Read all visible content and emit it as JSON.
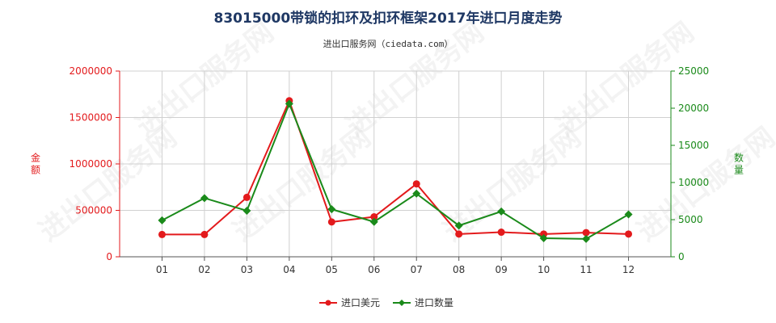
{
  "chart_data": {
    "type": "line",
    "title": "83015000带锁的扣环及扣环框架2017年进口月度走势",
    "subtitle": "进出口服务网（ciedata.com）",
    "watermark": "进出口服务网",
    "categories": [
      "01",
      "02",
      "03",
      "04",
      "05",
      "06",
      "07",
      "08",
      "09",
      "10",
      "11",
      "12"
    ],
    "left_axis": {
      "label": "金额",
      "ylim": [
        0,
        2000000
      ],
      "ticks": [
        "0",
        "500000",
        "1000000",
        "1500000",
        "2000000"
      ],
      "color": "#e31a1c"
    },
    "right_axis": {
      "label": "数量",
      "ylim": [
        0,
        25000
      ],
      "ticks": [
        "0",
        "5000",
        "10000",
        "15000",
        "20000",
        "25000"
      ],
      "color": "#1a8a1a"
    },
    "series": [
      {
        "name": "进口美元",
        "axis": "left",
        "color": "#e31a1c",
        "values": [
          240000,
          240000,
          640000,
          1680000,
          375000,
          430000,
          785000,
          245000,
          265000,
          245000,
          260000,
          245000
        ]
      },
      {
        "name": "进口数量",
        "axis": "right",
        "color": "#1a8a1a",
        "values": [
          4900,
          7900,
          6200,
          20600,
          6400,
          4700,
          8500,
          4200,
          6100,
          2500,
          2400,
          5700
        ]
      }
    ],
    "grid": true,
    "legend_position": "bottom"
  }
}
